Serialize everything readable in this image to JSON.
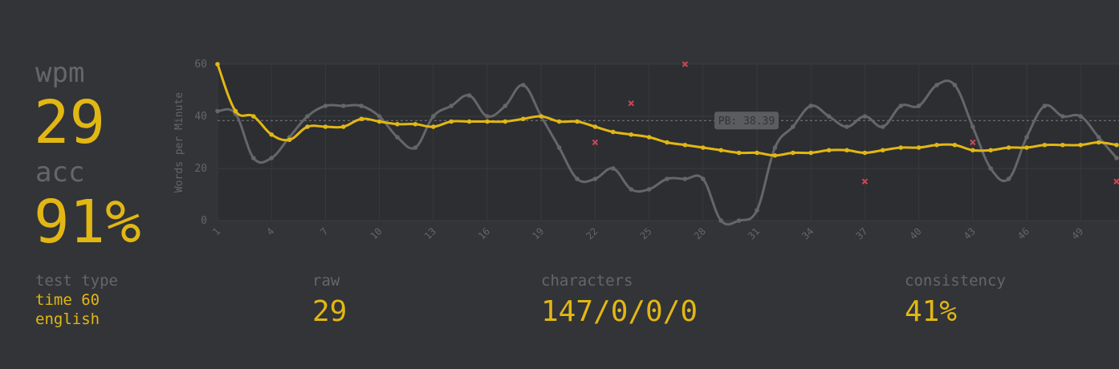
{
  "summary": {
    "wpm_label": "wpm",
    "wpm_value": "29",
    "acc_label": "acc",
    "acc_value": "91%"
  },
  "details": {
    "test_type_label": "test type",
    "test_type_line1": "time 60",
    "test_type_line2": "english",
    "raw_label": "raw",
    "raw_value": "29",
    "characters_label": "characters",
    "characters_value": "147/0/0/0",
    "consistency_label": "consistency",
    "consistency_value": "41%"
  },
  "colors": {
    "background": "#323437",
    "accent": "#e2b714",
    "muted": "#646669",
    "raw_line": "#646669",
    "error": "#ca4754"
  },
  "chart_data": {
    "type": "line",
    "ylabel": "Words per Minute",
    "ylim": [
      0,
      60
    ],
    "yticks": [
      0,
      20,
      40,
      60
    ],
    "x_tick_labels": [
      "1",
      "4",
      "7",
      "10",
      "13",
      "16",
      "19",
      "22",
      "25",
      "28",
      "31",
      "34",
      "37",
      "40",
      "43",
      "46",
      "49"
    ],
    "x": [
      1,
      2,
      3,
      4,
      5,
      6,
      7,
      8,
      9,
      10,
      11,
      12,
      13,
      14,
      15,
      16,
      17,
      18,
      19,
      20,
      21,
      22,
      23,
      24,
      25,
      26,
      27,
      28,
      29,
      30,
      31,
      32,
      33,
      34,
      35,
      36,
      37,
      38,
      39,
      40,
      41,
      42,
      43,
      44,
      45,
      46,
      47,
      48,
      49,
      50,
      51
    ],
    "series": [
      {
        "values": [
          60,
          42,
          40,
          33,
          31,
          36,
          36,
          36,
          39,
          38,
          37,
          37,
          36,
          38,
          38,
          38,
          38,
          39,
          40,
          38,
          38,
          36,
          34,
          33,
          32,
          30,
          29,
          28,
          27,
          26,
          26,
          25,
          26,
          26,
          27,
          27,
          26,
          27,
          28,
          28,
          29,
          29,
          27,
          27,
          28,
          28,
          29,
          29,
          29,
          30,
          29
        ],
        "color": "#e2b714"
      },
      {
        "values": [
          42,
          41,
          24,
          24,
          32,
          40,
          44,
          44,
          44,
          40,
          32,
          28,
          40,
          44,
          48,
          40,
          44,
          52,
          40,
          28,
          16,
          16,
          20,
          12,
          12,
          16,
          16,
          16,
          0,
          0,
          4,
          28,
          36,
          44,
          40,
          36,
          40,
          36,
          44,
          44,
          52,
          52,
          36,
          20,
          16,
          32,
          44,
          40,
          40,
          32,
          24
        ],
        "color": "#646669"
      }
    ],
    "errors": [
      {
        "x": 22,
        "y": 30
      },
      {
        "x": 24,
        "y": 45
      },
      {
        "x": 27,
        "y": 60
      },
      {
        "x": 37,
        "y": 15
      },
      {
        "x": 43,
        "y": 30
      },
      {
        "x": 51,
        "y": 15
      }
    ],
    "annotations": [
      {
        "label": "PB: 38.39",
        "y": 38.39
      }
    ],
    "grid": true
  }
}
